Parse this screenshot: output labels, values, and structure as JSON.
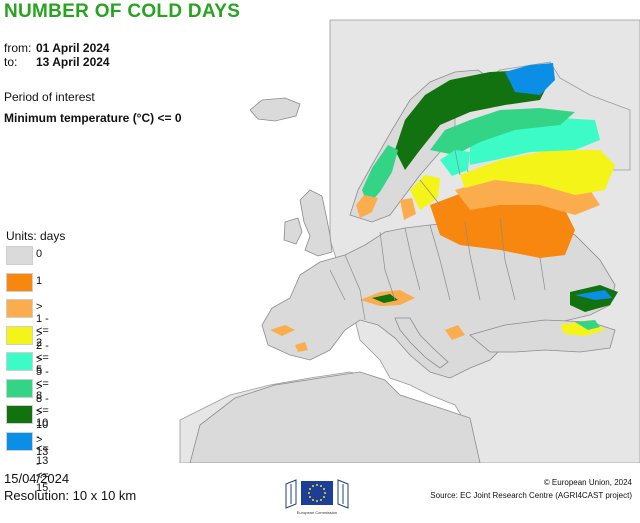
{
  "title": "NUMBER OF COLD DAYS",
  "period": {
    "from_label": "from:",
    "from_value": "01 April 2024",
    "to_label": "to:",
    "to_value": "13 April 2024"
  },
  "interest": {
    "label": "Period of interest",
    "value": "Minimum temperature (°C) <= 0"
  },
  "legend": {
    "units": "Units: days",
    "items": [
      {
        "label": "0",
        "color": "#dadada"
      },
      {
        "label": "1",
        "color": "#f7870f"
      },
      {
        "label": "> 1 - <= 2",
        "color": "#fbad4e"
      },
      {
        "label": "> 2 - <= 5",
        "color": "#f4f419"
      },
      {
        "label": "> 5 - <= 8",
        "color": "#3dfbc7"
      },
      {
        "label": "> 8 - <= 10",
        "color": "#33d486"
      },
      {
        "label": "> 10 - <= 13",
        "color": "#12720f"
      },
      {
        "label": "> 13 - <= 15",
        "color": "#0b8ee6"
      }
    ]
  },
  "footer": {
    "date": "15/04/2024",
    "resolution": "Resolution: 10 x 10 km",
    "copyright": "© European Union, 2024",
    "source": "Source: EC Joint Research Centre (AGRI4CAST project)",
    "logo_text": "European Commission"
  },
  "colors": {
    "sea": "#ffffff",
    "land_outside": "#e3e3e3",
    "border": "#8c8c8c",
    "title": "#27a320"
  }
}
